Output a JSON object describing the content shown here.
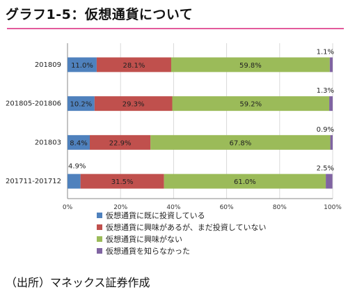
{
  "title": "グラフ1-5：仮想通貨について",
  "source": "（出所）マネックス証券作成",
  "chart_data": {
    "type": "bar",
    "orientation": "horizontal",
    "stacked": true,
    "categories": [
      "201809",
      "201805-201806",
      "201803",
      "201711-201712"
    ],
    "series": [
      {
        "name": "仮想通貨に既に投資している",
        "color": "#4f81bd",
        "values": [
          11.0,
          10.2,
          8.4,
          4.9
        ]
      },
      {
        "name": "仮想通貨に興味があるが、まだ投資していない",
        "color": "#c0504d",
        "values": [
          28.1,
          29.3,
          22.9,
          31.5
        ]
      },
      {
        "name": "仮想通貨に興味がない",
        "color": "#9bbb59",
        "values": [
          59.8,
          59.2,
          67.8,
          61.0
        ]
      },
      {
        "name": "仮想通貨を知らなかった",
        "color": "#8064a2",
        "values": [
          1.1,
          1.3,
          0.9,
          2.5
        ]
      }
    ],
    "xlim": [
      0,
      100
    ],
    "xticks": [
      "0%",
      "20%",
      "40%",
      "60%",
      "80%",
      "100%"
    ],
    "grid": true,
    "legend_position": "bottom-left"
  }
}
